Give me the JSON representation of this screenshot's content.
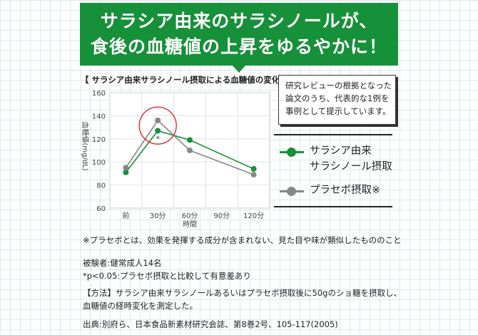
{
  "banner": {
    "line1": "サラシア由来のサラシノールが、",
    "line2": "食後の血糖値の上昇をゆるやかに！"
  },
  "chart_heading": "【 サラシア由来サラシノール摂取による血糖値の変化 】",
  "note_box": {
    "lines": [
      "研究レビューの根拠となった",
      "論文のうち、代表的な1例を",
      "事例として提示しています。"
    ]
  },
  "legend": [
    {
      "lines": [
        "サラシア由来",
        "サラシノール摂取"
      ],
      "color": "#17903a"
    },
    {
      "lines": [
        "プラセボ摂取※"
      ],
      "color": "#888888"
    }
  ],
  "chart_data": {
    "type": "line",
    "categories": [
      "前",
      "30分",
      "60分",
      "90分",
      "120分"
    ],
    "xlabel": "時間",
    "ylabel": "血糖値(mg/dL)",
    "ylim": [
      60,
      160
    ],
    "yticks": [
      60,
      80,
      100,
      120,
      140,
      160
    ],
    "grid": true,
    "series": [
      {
        "name": "サラシア由来サラシノール摂取",
        "color": "#17903a",
        "values": [
          91,
          127,
          119,
          null,
          94
        ]
      },
      {
        "name": "プラセボ摂取※",
        "color": "#888888",
        "values": [
          95,
          136,
          110,
          null,
          89
        ]
      }
    ],
    "annotations": [
      {
        "text": "*",
        "x": "30分"
      }
    ],
    "highlight_circle_color": "#e12b2b"
  },
  "footnotes": {
    "placebo": "※プラセボとは、効果を発揮する成分が含まれない、見た目や味が類似したもののこと",
    "subjects": "被験者:健常成人14名",
    "significance": "*p<0.05:プラセボ摂取と比較して有意差あり",
    "method_line1": "【方法】サラシア由来サラシノールあるいはプラセボ摂取後に50gのショ糖を摂取し、",
    "method_line2": "血糖値の経時変化を測定した。",
    "source": "出典:別府ら、日本食品新素材研究会誌、第8巻2号、105-117(2005)"
  }
}
